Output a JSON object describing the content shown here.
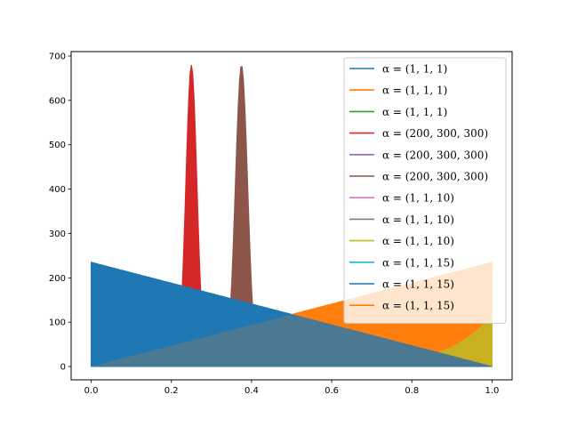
{
  "chart_data": {
    "type": "area",
    "title": "",
    "xlabel": "",
    "ylabel": "",
    "xlim": [
      -0.05,
      1.05
    ],
    "ylim": [
      -30,
      710
    ],
    "x_ticks": [
      0.0,
      0.2,
      0.4,
      0.6,
      0.8,
      1.0
    ],
    "x_tick_labels": [
      "0.0",
      "0.2",
      "0.4",
      "0.6",
      "0.8",
      "1.0"
    ],
    "y_ticks": [
      0,
      100,
      200,
      300,
      400,
      500,
      600,
      700
    ],
    "y_tick_labels": [
      "0",
      "100",
      "200",
      "300",
      "400",
      "500",
      "600",
      "700"
    ],
    "grid": false,
    "legend_position": "top-right",
    "colors": [
      "#1f77b4",
      "#ff7f0e",
      "#2ca02c",
      "#d62728",
      "#9467bd",
      "#8c564b",
      "#e377c2",
      "#7f7f7f",
      "#bcbd22",
      "#17becf",
      "#1f77b4",
      "#ff7f0e"
    ],
    "series": [
      {
        "name": "α = (1, 1, 1)",
        "color": "#1f77b4",
        "shape": "linear_decreasing",
        "peak_value": 235,
        "x_range": [
          0.0,
          1.0
        ],
        "fill_alpha": 1.0
      },
      {
        "name": "α = (1, 1, 1)",
        "color": "#ff7f0e",
        "shape": "linear_increasing",
        "peak_value": 235,
        "x_range": [
          0.0,
          1.0
        ],
        "fill_alpha": 1.0
      },
      {
        "name": "α = (1, 1, 1)",
        "color": "#2ca02c",
        "shape": "none",
        "peak_value": 0,
        "x_range": [
          0.0,
          1.0
        ],
        "fill_alpha": 1.0
      },
      {
        "name": "α = (200, 300, 300)",
        "color": "#d62728",
        "shape": "peak",
        "peak_value": 680,
        "peak_x": 0.25,
        "half_width": 0.03,
        "x_range": [
          0.0,
          1.0
        ],
        "fill_alpha": 1.0
      },
      {
        "name": "α = (200, 300, 300)",
        "color": "#9467bd",
        "shape": "none",
        "peak_value": 0,
        "x_range": [
          0.0,
          1.0
        ],
        "fill_alpha": 1.0
      },
      {
        "name": "α = (200, 300, 300)",
        "color": "#8c564b",
        "shape": "peak",
        "peak_value": 680,
        "peak_x": 0.375,
        "half_width": 0.033,
        "x_range": [
          0.0,
          1.0
        ],
        "fill_alpha": 1.0
      },
      {
        "name": "α = (1, 1, 10)",
        "color": "#e377c2",
        "shape": "none",
        "peak_value": 0,
        "x_range": [
          0.0,
          1.0
        ],
        "fill_alpha": 1.0
      },
      {
        "name": "α = (1, 1, 10)",
        "color": "#7f7f7f",
        "shape": "none",
        "peak_value": 0,
        "x_range": [
          0.0,
          1.0
        ],
        "fill_alpha": 1.0
      },
      {
        "name": "α = (1, 1, 10)",
        "color": "#bcbd22",
        "shape": "power_increasing",
        "power": 9,
        "peak_value": 115,
        "x_range": [
          0.0,
          1.0
        ],
        "fill_alpha": 1.0
      },
      {
        "name": "α = (1, 1, 15)",
        "color": "#17becf",
        "shape": "none",
        "peak_value": 0,
        "x_range": [
          0.0,
          1.0
        ],
        "fill_alpha": 1.0
      },
      {
        "name": "α = (1, 1, 15)",
        "color": "#1f77b4",
        "shape": "linear_decreasing",
        "peak_value": 235,
        "x_range": [
          0.0,
          1.0
        ],
        "fill_alpha": 1.0
      },
      {
        "name": "α = (1, 1, 15)",
        "color": "#ff7f0e",
        "shape": "linear_increasing",
        "peak_value": 235,
        "x_range": [
          0.0,
          1.0
        ],
        "fill_alpha": 0.2
      }
    ]
  }
}
